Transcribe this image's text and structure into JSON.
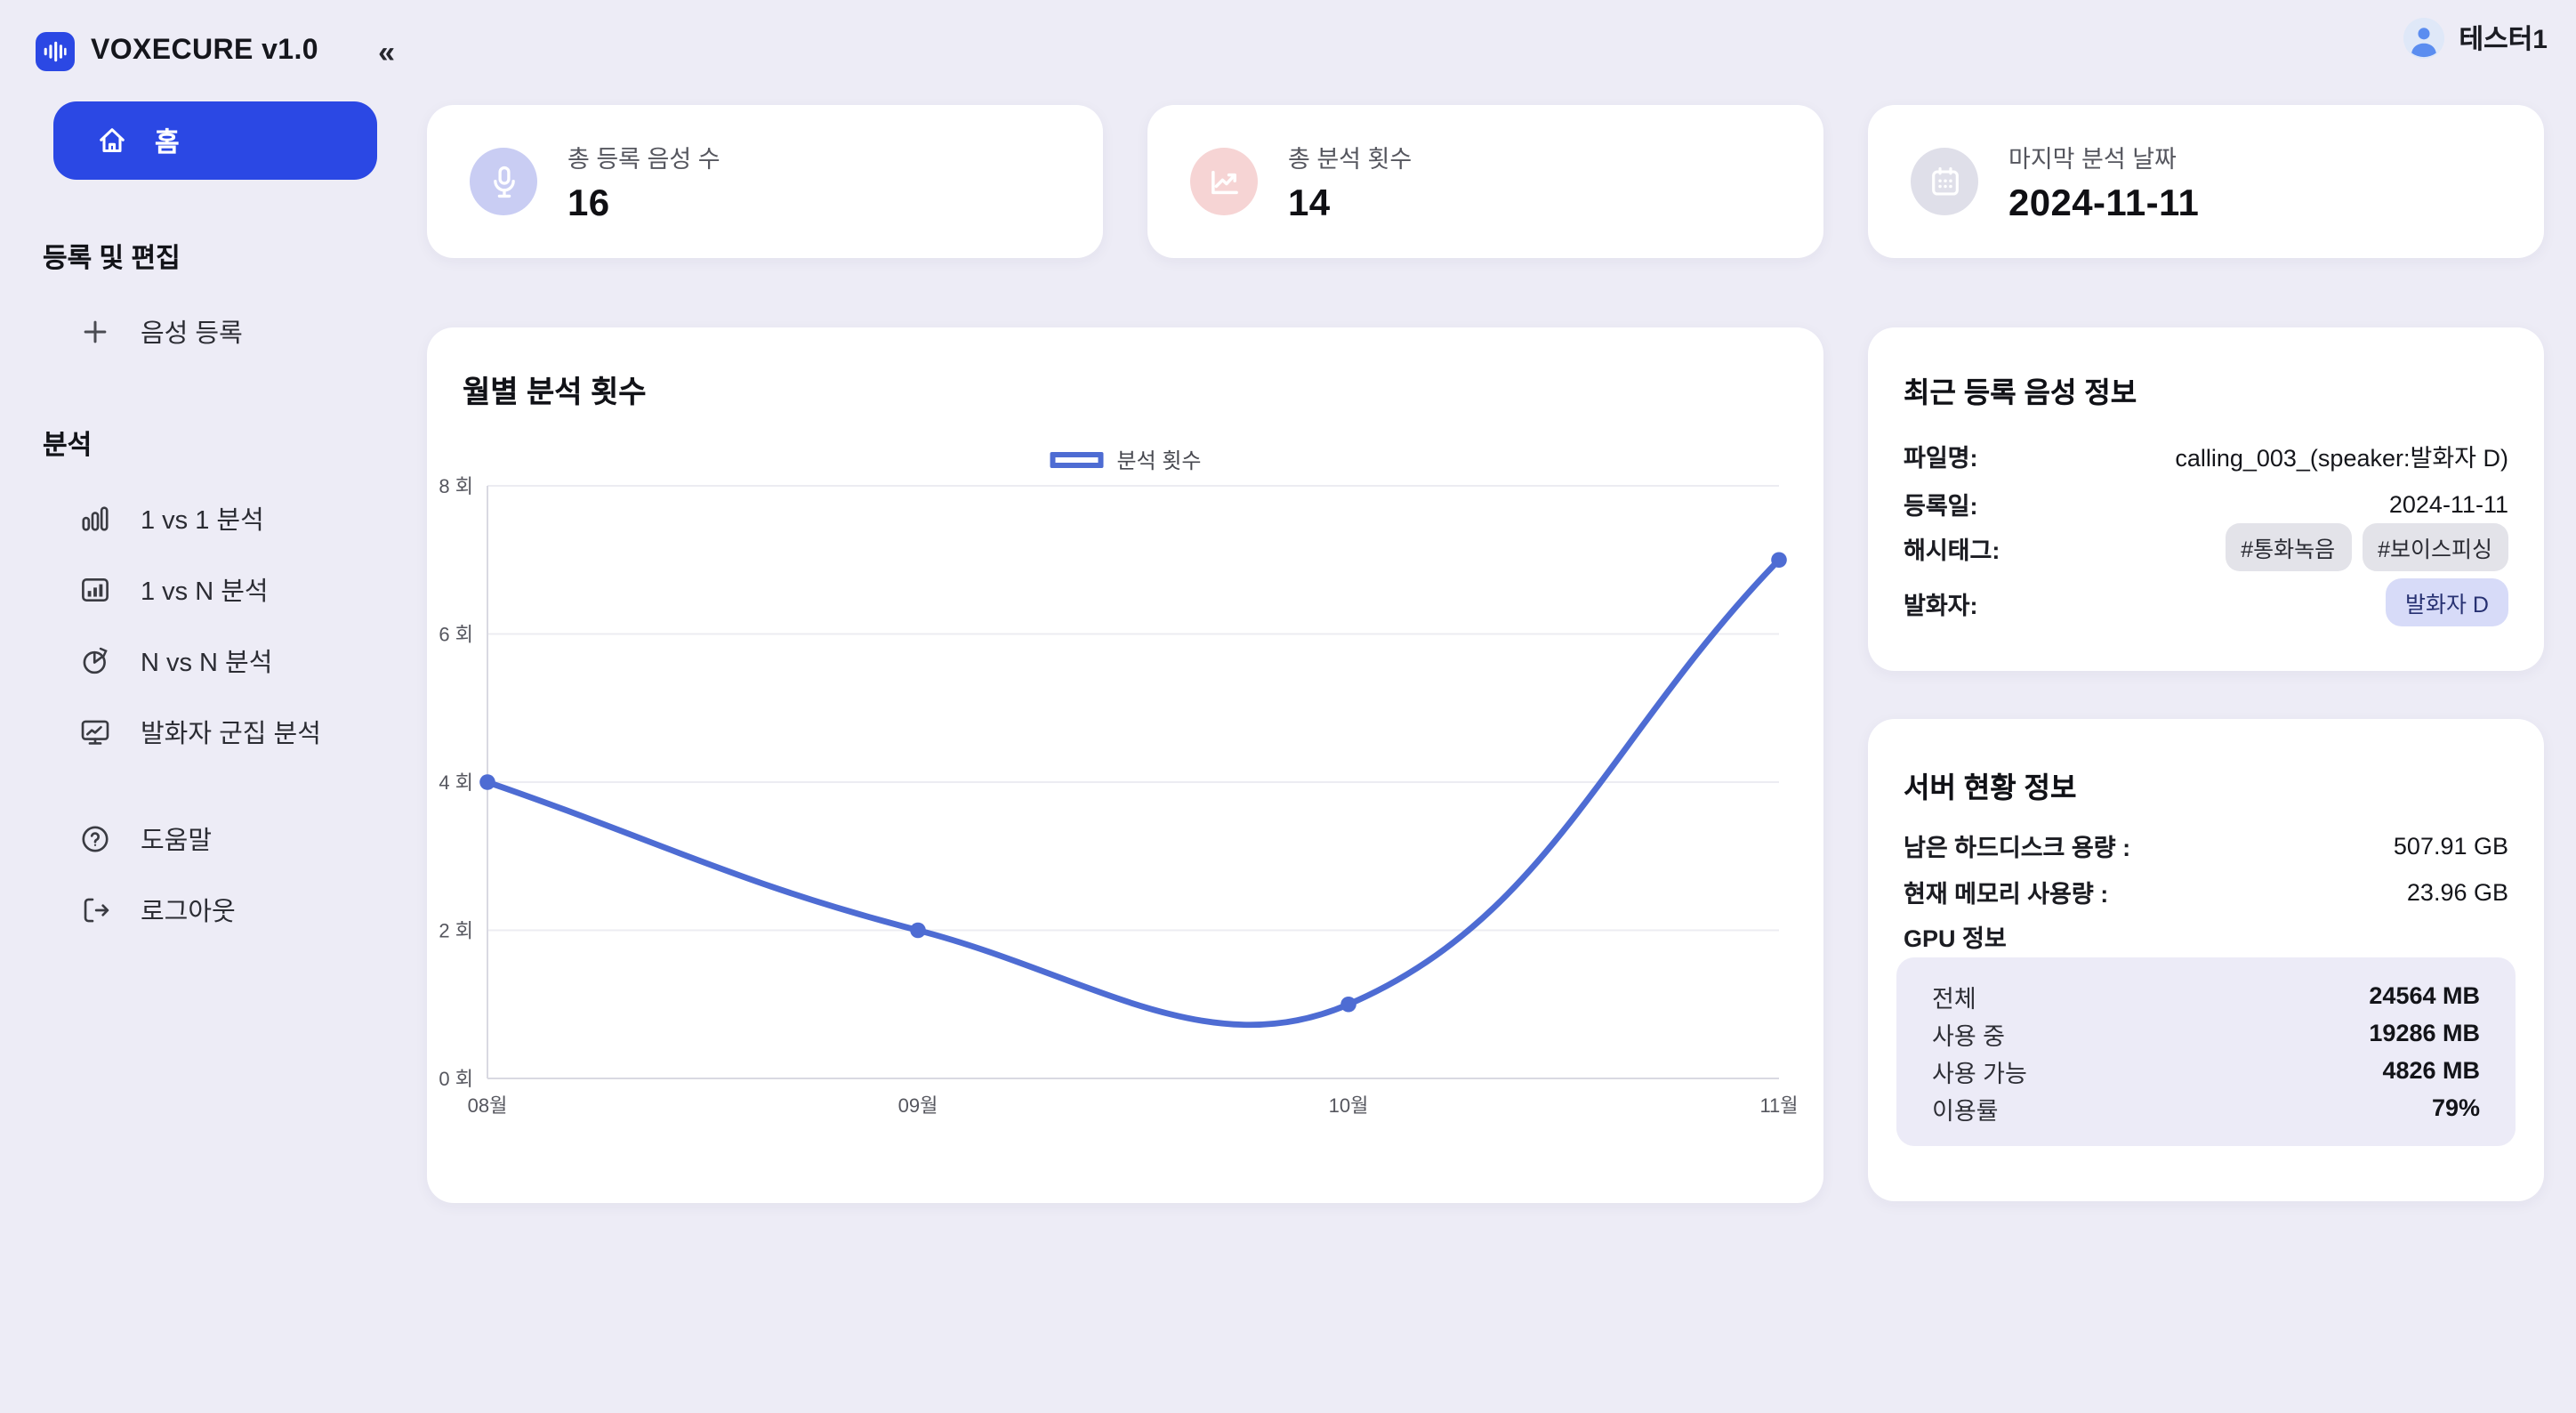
{
  "app": {
    "title": "VOXECURE v1.0",
    "collapse_glyph": "«"
  },
  "user": {
    "name": "테스터1"
  },
  "sidebar": {
    "home_label": "홈",
    "sections": [
      {
        "title": "등록 및 편집",
        "items": [
          {
            "label": "음성 등록"
          }
        ]
      },
      {
        "title": "분석",
        "items": [
          {
            "label": "1 vs 1 분석"
          },
          {
            "label": "1 vs N 분석"
          },
          {
            "label": "N vs N 분석"
          },
          {
            "label": "발화자 군집 분석"
          }
        ]
      }
    ],
    "footer_items": [
      {
        "label": "도움말"
      },
      {
        "label": "로그아웃"
      }
    ]
  },
  "stats": [
    {
      "label": "총 등록 음성 수",
      "value": "16",
      "icon": "mic-icon",
      "icon_bg": "#c9cdf3"
    },
    {
      "label": "총 분석 횟수",
      "value": "14",
      "icon": "trend-up-icon",
      "icon_bg": "#f6d4d4"
    },
    {
      "label": "마지막 분석 날짜",
      "value": "2024-11-11",
      "icon": "calendar-icon",
      "icon_bg": "#dfdfe9"
    }
  ],
  "chart_data": {
    "type": "line",
    "title": "월별 분석 횟수",
    "legend": "분석 횟수",
    "legend_position": "top-center",
    "categories": [
      "08월",
      "09월",
      "10월",
      "11월"
    ],
    "values": [
      4,
      2,
      1,
      7
    ],
    "ylim": [
      0,
      8
    ],
    "yticks": [
      {
        "v": 0,
        "label": "0 회"
      },
      {
        "v": 2,
        "label": "2 회"
      },
      {
        "v": 4,
        "label": "4 회"
      },
      {
        "v": 6,
        "label": "6 회"
      },
      {
        "v": 8,
        "label": "8 회"
      }
    ],
    "grid": true,
    "line_color": "#4e6cd3",
    "accent_color": "#2b48e4"
  },
  "recent_voice": {
    "title": "최근 등록 음성 정보",
    "filename_label": "파일명:",
    "filename_value": "calling_003_(speaker:발화자 D)",
    "date_label": "등록일:",
    "date_value": "2024-11-11",
    "hashtag_label": "해시태그:",
    "tags": [
      "#통화녹음",
      "#보이스피싱"
    ],
    "speaker_label": "발화자:",
    "speaker_value": "발화자 D"
  },
  "server": {
    "title": "서버 현황 정보",
    "disk_label": "남은 하드디스크 용량 :",
    "disk_value": "507.91 GB",
    "memory_label": "현재 메모리 사용량 :",
    "memory_value": "23.96 GB",
    "gpu_title": "GPU 정보",
    "gpu_rows": [
      {
        "label": "전체",
        "value": "24564 MB"
      },
      {
        "label": "사용 중",
        "value": "19286 MB"
      },
      {
        "label": "사용 가능",
        "value": "4826 MB"
      },
      {
        "label": "이용률",
        "value": "79%"
      }
    ]
  }
}
